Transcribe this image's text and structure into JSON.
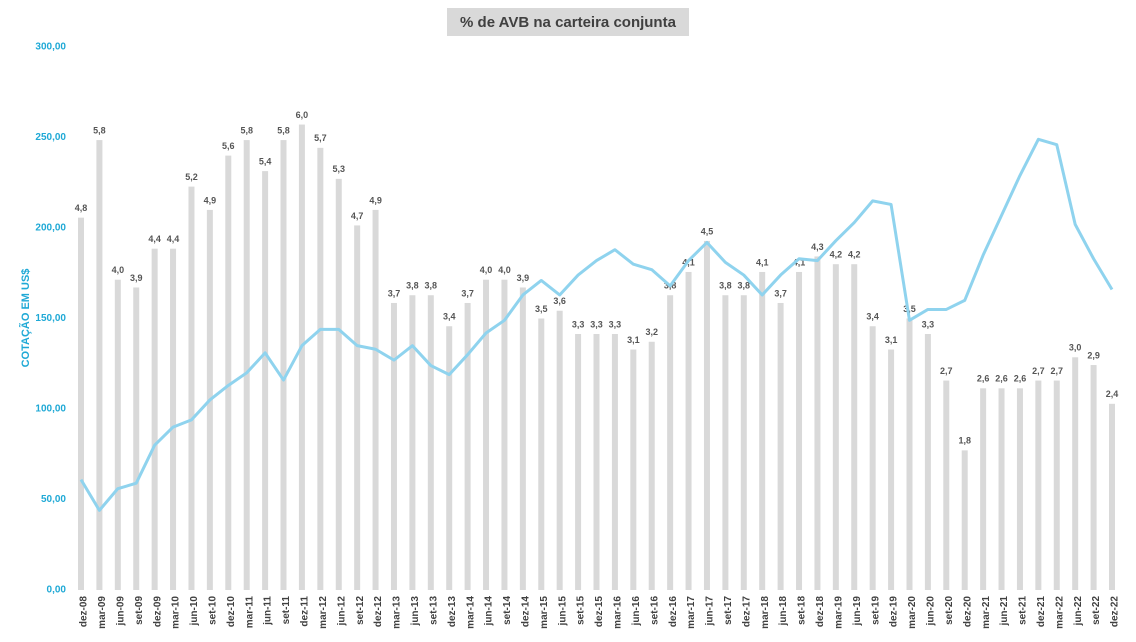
{
  "chart_data": {
    "type": "combo",
    "title": "% de AVB na carteira conjunta",
    "y_label": "COTAÇÃO EM US$",
    "categories": [
      "dez-08",
      "mar-09",
      "jun-09",
      "set-09",
      "dez-09",
      "mar-10",
      "jun-10",
      "set-10",
      "dez-10",
      "mar-11",
      "jun-11",
      "set-11",
      "dez-11",
      "mar-12",
      "jun-12",
      "set-12",
      "dez-12",
      "mar-13",
      "jun-13",
      "set-13",
      "dez-13",
      "mar-14",
      "jun-14",
      "set-14",
      "dez-14",
      "mar-15",
      "jun-15",
      "set-15",
      "dez-15",
      "mar-16",
      "jun-16",
      "set-16",
      "dez-16",
      "mar-17",
      "jun-17",
      "set-17",
      "dez-17",
      "mar-18",
      "jun-18",
      "set-18",
      "dez-18",
      "mar-19",
      "jun-19",
      "set-19",
      "dez-19",
      "mar-20",
      "jun-20",
      "set-20",
      "dez-20",
      "mar-21",
      "jun-21",
      "set-21",
      "dez-21",
      "mar-22",
      "jun-22",
      "set-22",
      "dez-22"
    ],
    "series": [
      {
        "type": "bar",
        "axis": "y2",
        "color": "#d9d9d9",
        "values": [
          4.8,
          5.8,
          4.0,
          3.9,
          4.4,
          4.4,
          5.2,
          4.9,
          5.6,
          5.8,
          5.4,
          5.8,
          6.0,
          5.7,
          5.3,
          4.7,
          4.9,
          3.7,
          3.8,
          3.8,
          3.4,
          3.7,
          4.0,
          4.0,
          3.9,
          3.5,
          3.6,
          3.3,
          3.3,
          3.3,
          3.1,
          3.2,
          3.8,
          4.1,
          4.5,
          3.8,
          3.8,
          4.1,
          3.7,
          4.1,
          4.3,
          4.2,
          4.2,
          3.4,
          3.1,
          3.5,
          3.3,
          2.7,
          1.8,
          2.6,
          2.6,
          2.6,
          2.7,
          2.7,
          3.0,
          2.9,
          2.4
        ],
        "value_labels": [
          "4,8",
          "5,8",
          "4,0",
          "3,9",
          "4,4",
          "4,4",
          "5,2",
          "4,9",
          "5,6",
          "5,8",
          "5,4",
          "5,8",
          "6,0",
          "5,7",
          "5,3",
          "4,7",
          "4,9",
          "3,7",
          "3,8",
          "3,8",
          "3,4",
          "3,7",
          "4,0",
          "4,0",
          "3,9",
          "3,5",
          "3,6",
          "3,3",
          "3,3",
          "3,3",
          "3,1",
          "3,2",
          "3,8",
          "4,1",
          "4,5",
          "3,8",
          "3,8",
          "4,1",
          "3,7",
          "4,1",
          "4,3",
          "4,2",
          "4,2",
          "3,4",
          "3,1",
          "3,5",
          "3,3",
          "2,7",
          "1,8",
          "2,6",
          "2,6",
          "2,6",
          "2,7",
          "2,7",
          "3,0",
          "2,9",
          "2,4"
        ]
      },
      {
        "type": "line",
        "axis": "y",
        "color": "#8fd3ee",
        "values": [
          61,
          44,
          56,
          59,
          80,
          90,
          94,
          105,
          113,
          120,
          131,
          116,
          135,
          144,
          144,
          135,
          133,
          127,
          135,
          124,
          119,
          130,
          142,
          149,
          163,
          171,
          163,
          174,
          182,
          188,
          180,
          177,
          168,
          182,
          192,
          181,
          174,
          163,
          174,
          183,
          182,
          193,
          203,
          215,
          213,
          149,
          155,
          155,
          160,
          185,
          207,
          229,
          249,
          246,
          202,
          183,
          166
        ]
      }
    ],
    "ylim": [
      0,
      300
    ],
    "yticks": [
      {
        "value": 0,
        "label": "0,00"
      },
      {
        "value": 50,
        "label": "50,00"
      },
      {
        "value": 100,
        "label": "100,00"
      },
      {
        "value": 150,
        "label": "150,00"
      },
      {
        "value": 200,
        "label": "200,00"
      },
      {
        "value": 250,
        "label": "250,00"
      },
      {
        "value": 300,
        "label": "300,00"
      }
    ],
    "y2lim": [
      0,
      7
    ]
  }
}
